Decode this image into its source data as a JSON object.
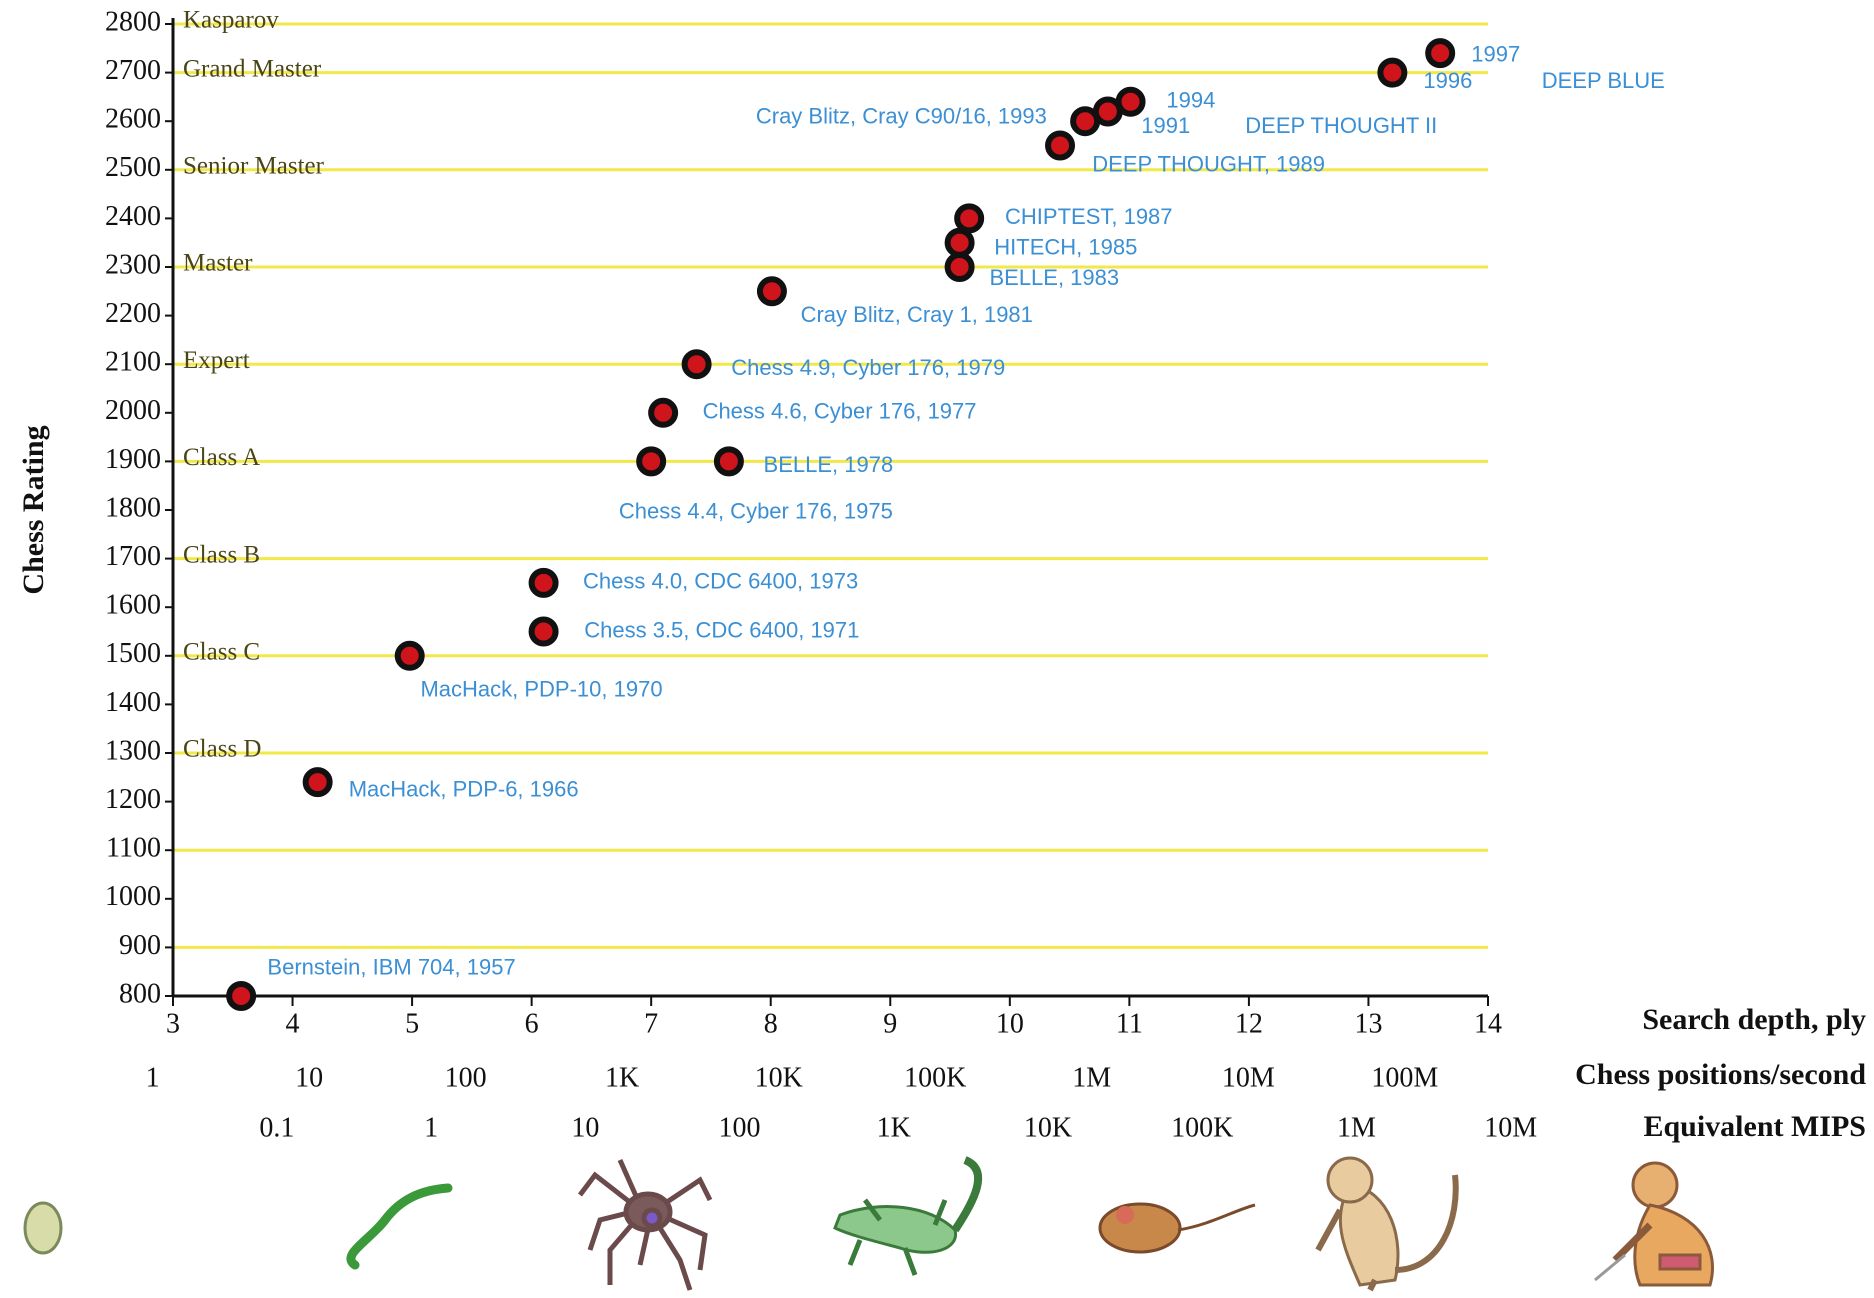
{
  "chart_data": {
    "type": "scatter",
    "y_label": "Chess Rating",
    "x_label": "Search depth, ply",
    "xlim": [
      3,
      14
    ],
    "xticks": [
      3,
      4,
      5,
      6,
      7,
      8,
      9,
      10,
      11,
      12,
      13,
      14
    ],
    "ylim": [
      800,
      2800
    ],
    "yticks": [
      800,
      900,
      1000,
      1100,
      1200,
      1300,
      1400,
      1500,
      1600,
      1700,
      1800,
      1900,
      2000,
      2100,
      2200,
      2300,
      2400,
      2500,
      2600,
      2700,
      2800
    ],
    "hlines": [
      900,
      1100,
      1300,
      1500,
      1700,
      1900,
      2100,
      2300,
      2500,
      2700,
      2800
    ],
    "hline_labels": [
      null,
      null,
      "Class D",
      "Class C",
      "Class B",
      "Class A",
      "Expert",
      "Master",
      "Senior Master",
      "Grand Master",
      "Kasparov"
    ],
    "hline_color": "#f2e84a",
    "marker_color": "#d0141c",
    "label_color": "#3b8fd4",
    "x": [
      3.57,
      4.21,
      4.98,
      6.1,
      6.1,
      7.0,
      7.65,
      7.1,
      7.38,
      8.01,
      9.58,
      9.58,
      9.66,
      10.42,
      10.63,
      10.82,
      11.01,
      13.2,
      13.6
    ],
    "values": [
      800,
      1240,
      1500,
      1550,
      1650,
      1900,
      1900,
      2000,
      2100,
      2250,
      2300,
      2350,
      2400,
      2550,
      2600,
      2620,
      2640,
      2700,
      2740
    ],
    "point_labels": [
      "Bernstein, IBM 704, 1957",
      "MacHack, PDP-6, 1966",
      "MacHack, PDP-10, 1970",
      "Chess 3.5, CDC 6400, 1971",
      "Chess 4.0, CDC 6400, 1973",
      "Chess 4.4, Cyber 176, 1975",
      "BELLE, 1978",
      "Chess 4.6, Cyber 176, 1977",
      "Chess 4.9, Cyber 176, 1979",
      "Cray Blitz, Cray 1, 1981",
      "BELLE, 1983",
      "HITECH, 1985",
      "CHIPTEST, 1987",
      "DEEP THOUGHT, 1989",
      "Cray Blitz, Cray C90/16, 1993",
      "1991",
      "1994",
      "1996",
      "1997"
    ],
    "annotations": [
      "DEEP THOUGHT II",
      "DEEP BLUE"
    ],
    "secondary_axes": [
      {
        "label": "Chess positions/second",
        "lim": [
          1.35,
          340000000
        ],
        "log": true,
        "ticks": [
          1,
          10,
          100,
          {
            "value": 1000,
            "label": "1K"
          },
          {
            "value": 10000,
            "label": "10K"
          },
          {
            "value": 100000,
            "label": "100K"
          },
          {
            "value": 1000000,
            "label": "1M"
          },
          {
            "value": 10000000,
            "label": "10M"
          },
          {
            "value": 100000000,
            "label": "100M"
          }
        ]
      },
      {
        "label": "Equivalent MIPS",
        "lim": [
          0.0212,
          7130000
        ],
        "log": true,
        "ticks": [
          0.1,
          1,
          10,
          100,
          {
            "value": 1000,
            "label": "1K"
          },
          {
            "value": 10000,
            "label": "10K"
          },
          {
            "value": 100000,
            "label": "100K"
          },
          {
            "value": 1000000,
            "label": "1M"
          },
          {
            "value": 10000000,
            "label": "10M"
          }
        ]
      }
    ]
  }
}
